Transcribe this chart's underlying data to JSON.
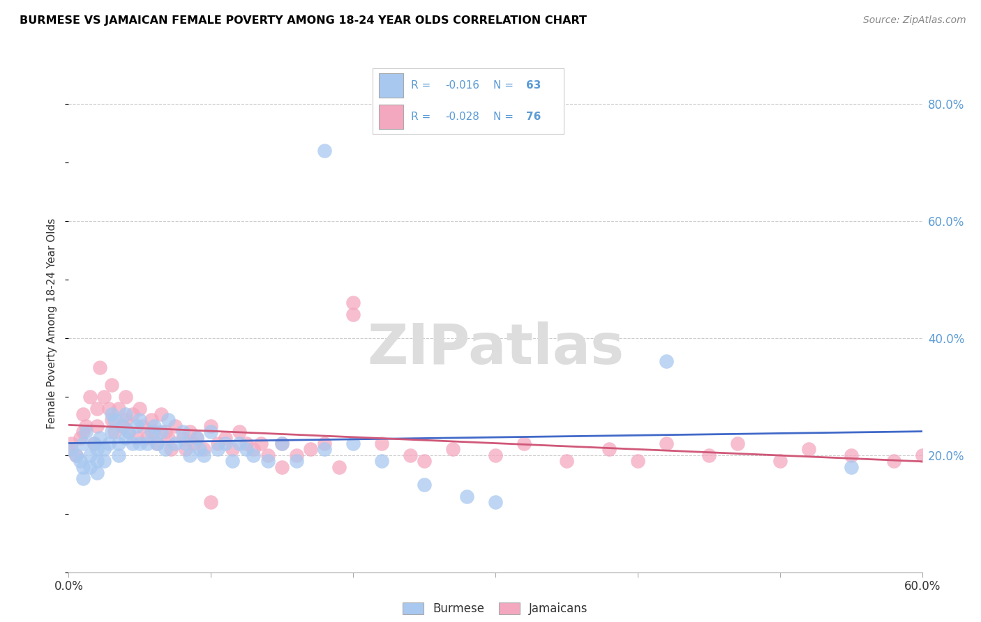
{
  "title": "BURMESE VS JAMAICAN FEMALE POVERTY AMONG 18-24 YEAR OLDS CORRELATION CHART",
  "source": "Source: ZipAtlas.com",
  "ylabel": "Female Poverty Among 18-24 Year Olds",
  "xlim": [
    0.0,
    0.6
  ],
  "ylim": [
    0.0,
    0.85
  ],
  "burmese_R": "-0.016",
  "burmese_N": "63",
  "jamaican_R": "-0.028",
  "jamaican_N": "76",
  "burmese_color": "#A8C8F0",
  "jamaican_color": "#F4A8C0",
  "burmese_edge_color": "#7AACE0",
  "jamaican_edge_color": "#E880A0",
  "burmese_line_color": "#4169C8",
  "jamaican_line_color": "#D05878",
  "legend_text_color": "#5B9BD5",
  "watermark_color": "#DDDDDD",
  "burmese_x": [
    0.002,
    0.005,
    0.008,
    0.01,
    0.01,
    0.01,
    0.012,
    0.015,
    0.015,
    0.018,
    0.02,
    0.02,
    0.02,
    0.022,
    0.025,
    0.025,
    0.028,
    0.03,
    0.03,
    0.032,
    0.035,
    0.035,
    0.038,
    0.04,
    0.04,
    0.042,
    0.045,
    0.048,
    0.05,
    0.05,
    0.055,
    0.058,
    0.06,
    0.062,
    0.065,
    0.068,
    0.07,
    0.075,
    0.08,
    0.082,
    0.085,
    0.09,
    0.092,
    0.095,
    0.1,
    0.105,
    0.11,
    0.115,
    0.12,
    0.125,
    0.13,
    0.14,
    0.15,
    0.16,
    0.18,
    0.2,
    0.22,
    0.25,
    0.28,
    0.3,
    0.42,
    0.55,
    0.18
  ],
  "burmese_y": [
    0.21,
    0.2,
    0.19,
    0.22,
    0.18,
    0.16,
    0.24,
    0.2,
    0.18,
    0.22,
    0.21,
    0.19,
    0.17,
    0.23,
    0.21,
    0.19,
    0.22,
    0.27,
    0.24,
    0.26,
    0.22,
    0.2,
    0.25,
    0.27,
    0.23,
    0.24,
    0.22,
    0.25,
    0.26,
    0.22,
    0.22,
    0.24,
    0.25,
    0.22,
    0.24,
    0.21,
    0.26,
    0.22,
    0.24,
    0.22,
    0.2,
    0.23,
    0.21,
    0.2,
    0.24,
    0.21,
    0.22,
    0.19,
    0.22,
    0.21,
    0.2,
    0.19,
    0.22,
    0.19,
    0.21,
    0.22,
    0.19,
    0.15,
    0.13,
    0.12,
    0.36,
    0.18,
    0.72
  ],
  "jamaican_x": [
    0.0,
    0.002,
    0.005,
    0.008,
    0.01,
    0.01,
    0.012,
    0.015,
    0.018,
    0.02,
    0.02,
    0.022,
    0.025,
    0.028,
    0.03,
    0.03,
    0.032,
    0.035,
    0.038,
    0.04,
    0.04,
    0.042,
    0.045,
    0.048,
    0.05,
    0.052,
    0.055,
    0.058,
    0.06,
    0.062,
    0.065,
    0.068,
    0.07,
    0.072,
    0.075,
    0.08,
    0.082,
    0.085,
    0.088,
    0.09,
    0.095,
    0.1,
    0.105,
    0.11,
    0.115,
    0.12,
    0.125,
    0.13,
    0.135,
    0.14,
    0.15,
    0.16,
    0.17,
    0.18,
    0.19,
    0.2,
    0.22,
    0.24,
    0.25,
    0.27,
    0.3,
    0.32,
    0.35,
    0.38,
    0.4,
    0.42,
    0.45,
    0.47,
    0.5,
    0.52,
    0.55,
    0.58,
    0.6,
    0.15,
    0.1,
    0.2
  ],
  "jamaican_y": [
    0.21,
    0.22,
    0.2,
    0.23,
    0.27,
    0.24,
    0.25,
    0.3,
    0.22,
    0.28,
    0.25,
    0.35,
    0.3,
    0.28,
    0.32,
    0.26,
    0.24,
    0.28,
    0.25,
    0.3,
    0.26,
    0.24,
    0.27,
    0.23,
    0.28,
    0.25,
    0.23,
    0.26,
    0.24,
    0.22,
    0.27,
    0.24,
    0.23,
    0.21,
    0.25,
    0.23,
    0.21,
    0.24,
    0.22,
    0.23,
    0.21,
    0.25,
    0.22,
    0.23,
    0.21,
    0.24,
    0.22,
    0.21,
    0.22,
    0.2,
    0.22,
    0.2,
    0.21,
    0.22,
    0.18,
    0.44,
    0.22,
    0.2,
    0.19,
    0.21,
    0.2,
    0.22,
    0.19,
    0.21,
    0.19,
    0.22,
    0.2,
    0.22,
    0.19,
    0.21,
    0.2,
    0.19,
    0.2,
    0.18,
    0.12,
    0.46
  ]
}
